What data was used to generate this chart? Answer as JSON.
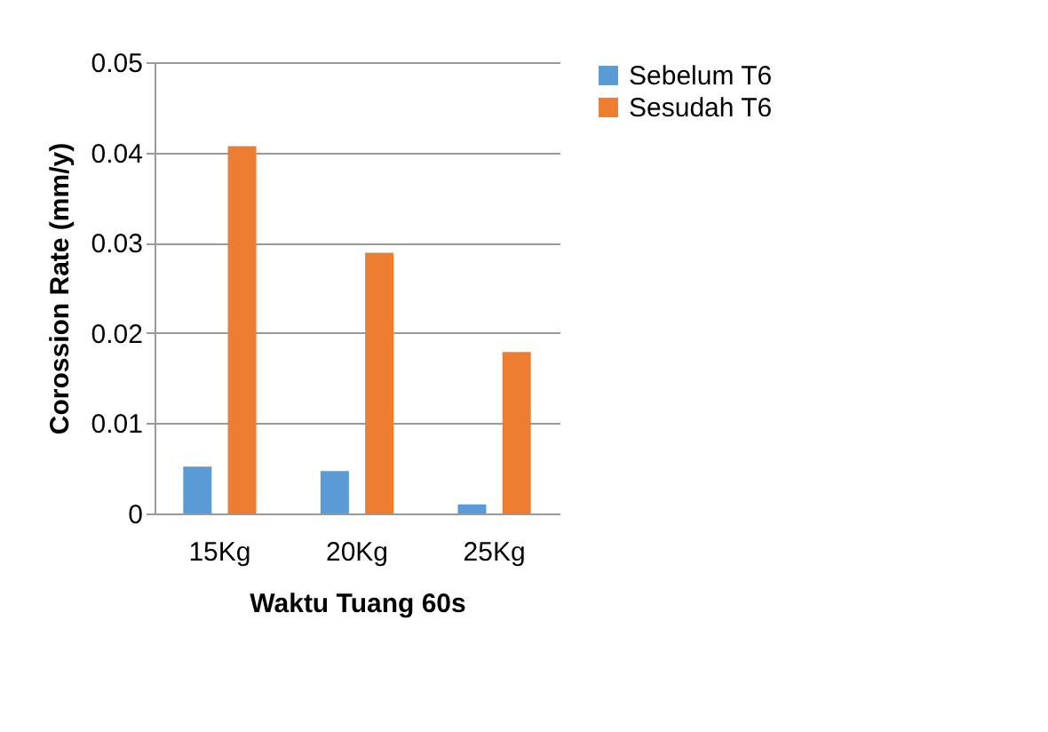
{
  "chart_data": {
    "type": "bar",
    "xlabel": "Waktu Tuang 60s",
    "ylabel": "Corossion Rate (mm/y)",
    "categories": [
      "15Kg",
      "20Kg",
      "25Kg"
    ],
    "series": [
      {
        "name": "Sebelum T6",
        "color": "#5b9bd5",
        "values": [
          0.0052,
          0.0047,
          0.001
        ]
      },
      {
        "name": "Sesudah T6",
        "color": "#ed7d31",
        "values": [
          0.0407,
          0.0289,
          0.0179
        ]
      }
    ],
    "ylim": [
      0,
      0.05
    ],
    "yticks": [
      0,
      0.01,
      0.02,
      0.03,
      0.04,
      0.05
    ],
    "grid": "y",
    "legend": "right"
  }
}
